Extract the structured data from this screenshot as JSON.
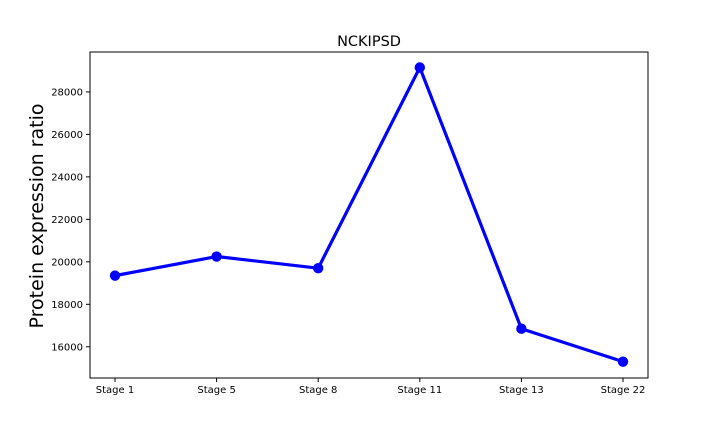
{
  "chart_data": {
    "type": "line",
    "title": "NCKIPSD",
    "xlabel": "",
    "ylabel": "Protein expression ratio",
    "categories": [
      "Stage 1",
      "Stage 5",
      "Stage 8",
      "Stage 11",
      "Stage 13",
      "Stage 22"
    ],
    "series": [
      {
        "values": [
          19350,
          20250,
          19700,
          29150,
          16850,
          15300
        ],
        "color": "#0000ff",
        "marker": "circle"
      }
    ],
    "ylim": [
      14530,
      29880
    ],
    "yticks": [
      16000,
      18000,
      20000,
      22000,
      24000,
      26000,
      28000
    ],
    "grid": false,
    "legend": "none"
  }
}
